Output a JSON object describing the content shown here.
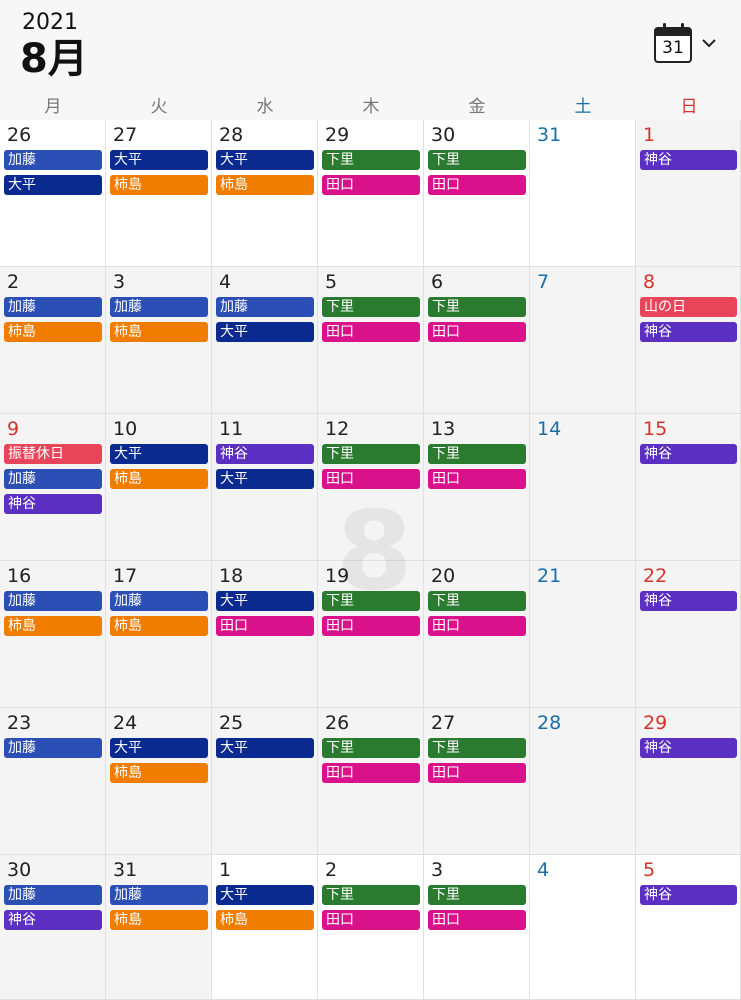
{
  "header": {
    "year": "2021",
    "month": "8月",
    "calendar_icon_day": "31"
  },
  "weekdays": [
    "月",
    "火",
    "水",
    "木",
    "金",
    "土",
    "日"
  ],
  "watermark": "8",
  "colors": {
    "加藤": "#2b4fb5",
    "大平": "#0b2a8f",
    "柿島": "#f07c00",
    "下里": "#2a7a2f",
    "田口": "#d9118b",
    "神谷": "#5b2fc2",
    "holiday": "#e9455a"
  },
  "weeks": [
    {
      "days": [
        {
          "num": "26",
          "events": [
            "加藤",
            "大平"
          ]
        },
        {
          "num": "27",
          "events": [
            "大平",
            "柿島"
          ]
        },
        {
          "num": "28",
          "events": [
            "大平",
            "柿島"
          ]
        },
        {
          "num": "29",
          "events": [
            "下里",
            "田口"
          ]
        },
        {
          "num": "30",
          "events": [
            "下里",
            "田口"
          ]
        },
        {
          "num": "31",
          "events": []
        },
        {
          "num": "1",
          "events": [
            "神谷"
          ]
        }
      ]
    },
    {
      "days": [
        {
          "num": "2",
          "events": [
            "加藤",
            "柿島"
          ]
        },
        {
          "num": "3",
          "events": [
            "加藤",
            "柿島"
          ]
        },
        {
          "num": "4",
          "events": [
            "加藤",
            "大平"
          ]
        },
        {
          "num": "5",
          "events": [
            "下里",
            "田口"
          ]
        },
        {
          "num": "6",
          "events": [
            "下里",
            "田口"
          ]
        },
        {
          "num": "7",
          "events": []
        },
        {
          "num": "8",
          "events": [
            "山の日",
            "神谷"
          ]
        }
      ]
    },
    {
      "days": [
        {
          "num": "9",
          "events": [
            "振替休日",
            "加藤",
            "神谷"
          ]
        },
        {
          "num": "10",
          "events": [
            "大平",
            "柿島"
          ]
        },
        {
          "num": "11",
          "events": [
            "神谷",
            "大平"
          ]
        },
        {
          "num": "12",
          "events": [
            "下里",
            "田口"
          ]
        },
        {
          "num": "13",
          "events": [
            "下里",
            "田口"
          ]
        },
        {
          "num": "14",
          "events": []
        },
        {
          "num": "15",
          "events": [
            "神谷"
          ]
        }
      ]
    },
    {
      "days": [
        {
          "num": "16",
          "events": [
            "加藤",
            "柿島"
          ]
        },
        {
          "num": "17",
          "events": [
            "加藤",
            "柿島"
          ]
        },
        {
          "num": "18",
          "events": [
            "大平",
            "田口"
          ]
        },
        {
          "num": "19",
          "events": [
            "下里",
            "田口"
          ]
        },
        {
          "num": "20",
          "events": [
            "下里",
            "田口"
          ]
        },
        {
          "num": "21",
          "events": []
        },
        {
          "num": "22",
          "events": [
            "神谷"
          ]
        }
      ]
    },
    {
      "days": [
        {
          "num": "23",
          "events": [
            "加藤"
          ]
        },
        {
          "num": "24",
          "events": [
            "大平",
            "柿島"
          ]
        },
        {
          "num": "25",
          "events": [
            "大平"
          ]
        },
        {
          "num": "26",
          "events": [
            "下里",
            "田口"
          ]
        },
        {
          "num": "27",
          "events": [
            "下里",
            "田口"
          ]
        },
        {
          "num": "28",
          "events": []
        },
        {
          "num": "29",
          "events": [
            "神谷"
          ]
        }
      ]
    },
    {
      "days": [
        {
          "num": "30",
          "events": [
            "加藤",
            "神谷"
          ]
        },
        {
          "num": "31",
          "events": [
            "加藤",
            "柿島"
          ]
        },
        {
          "num": "1",
          "events": [
            "大平",
            "柿島"
          ]
        },
        {
          "num": "2",
          "events": [
            "下里",
            "田口"
          ]
        },
        {
          "num": "3",
          "events": [
            "下里",
            "田口"
          ]
        },
        {
          "num": "4",
          "events": []
        },
        {
          "num": "5",
          "events": [
            "神谷"
          ]
        }
      ]
    }
  ]
}
